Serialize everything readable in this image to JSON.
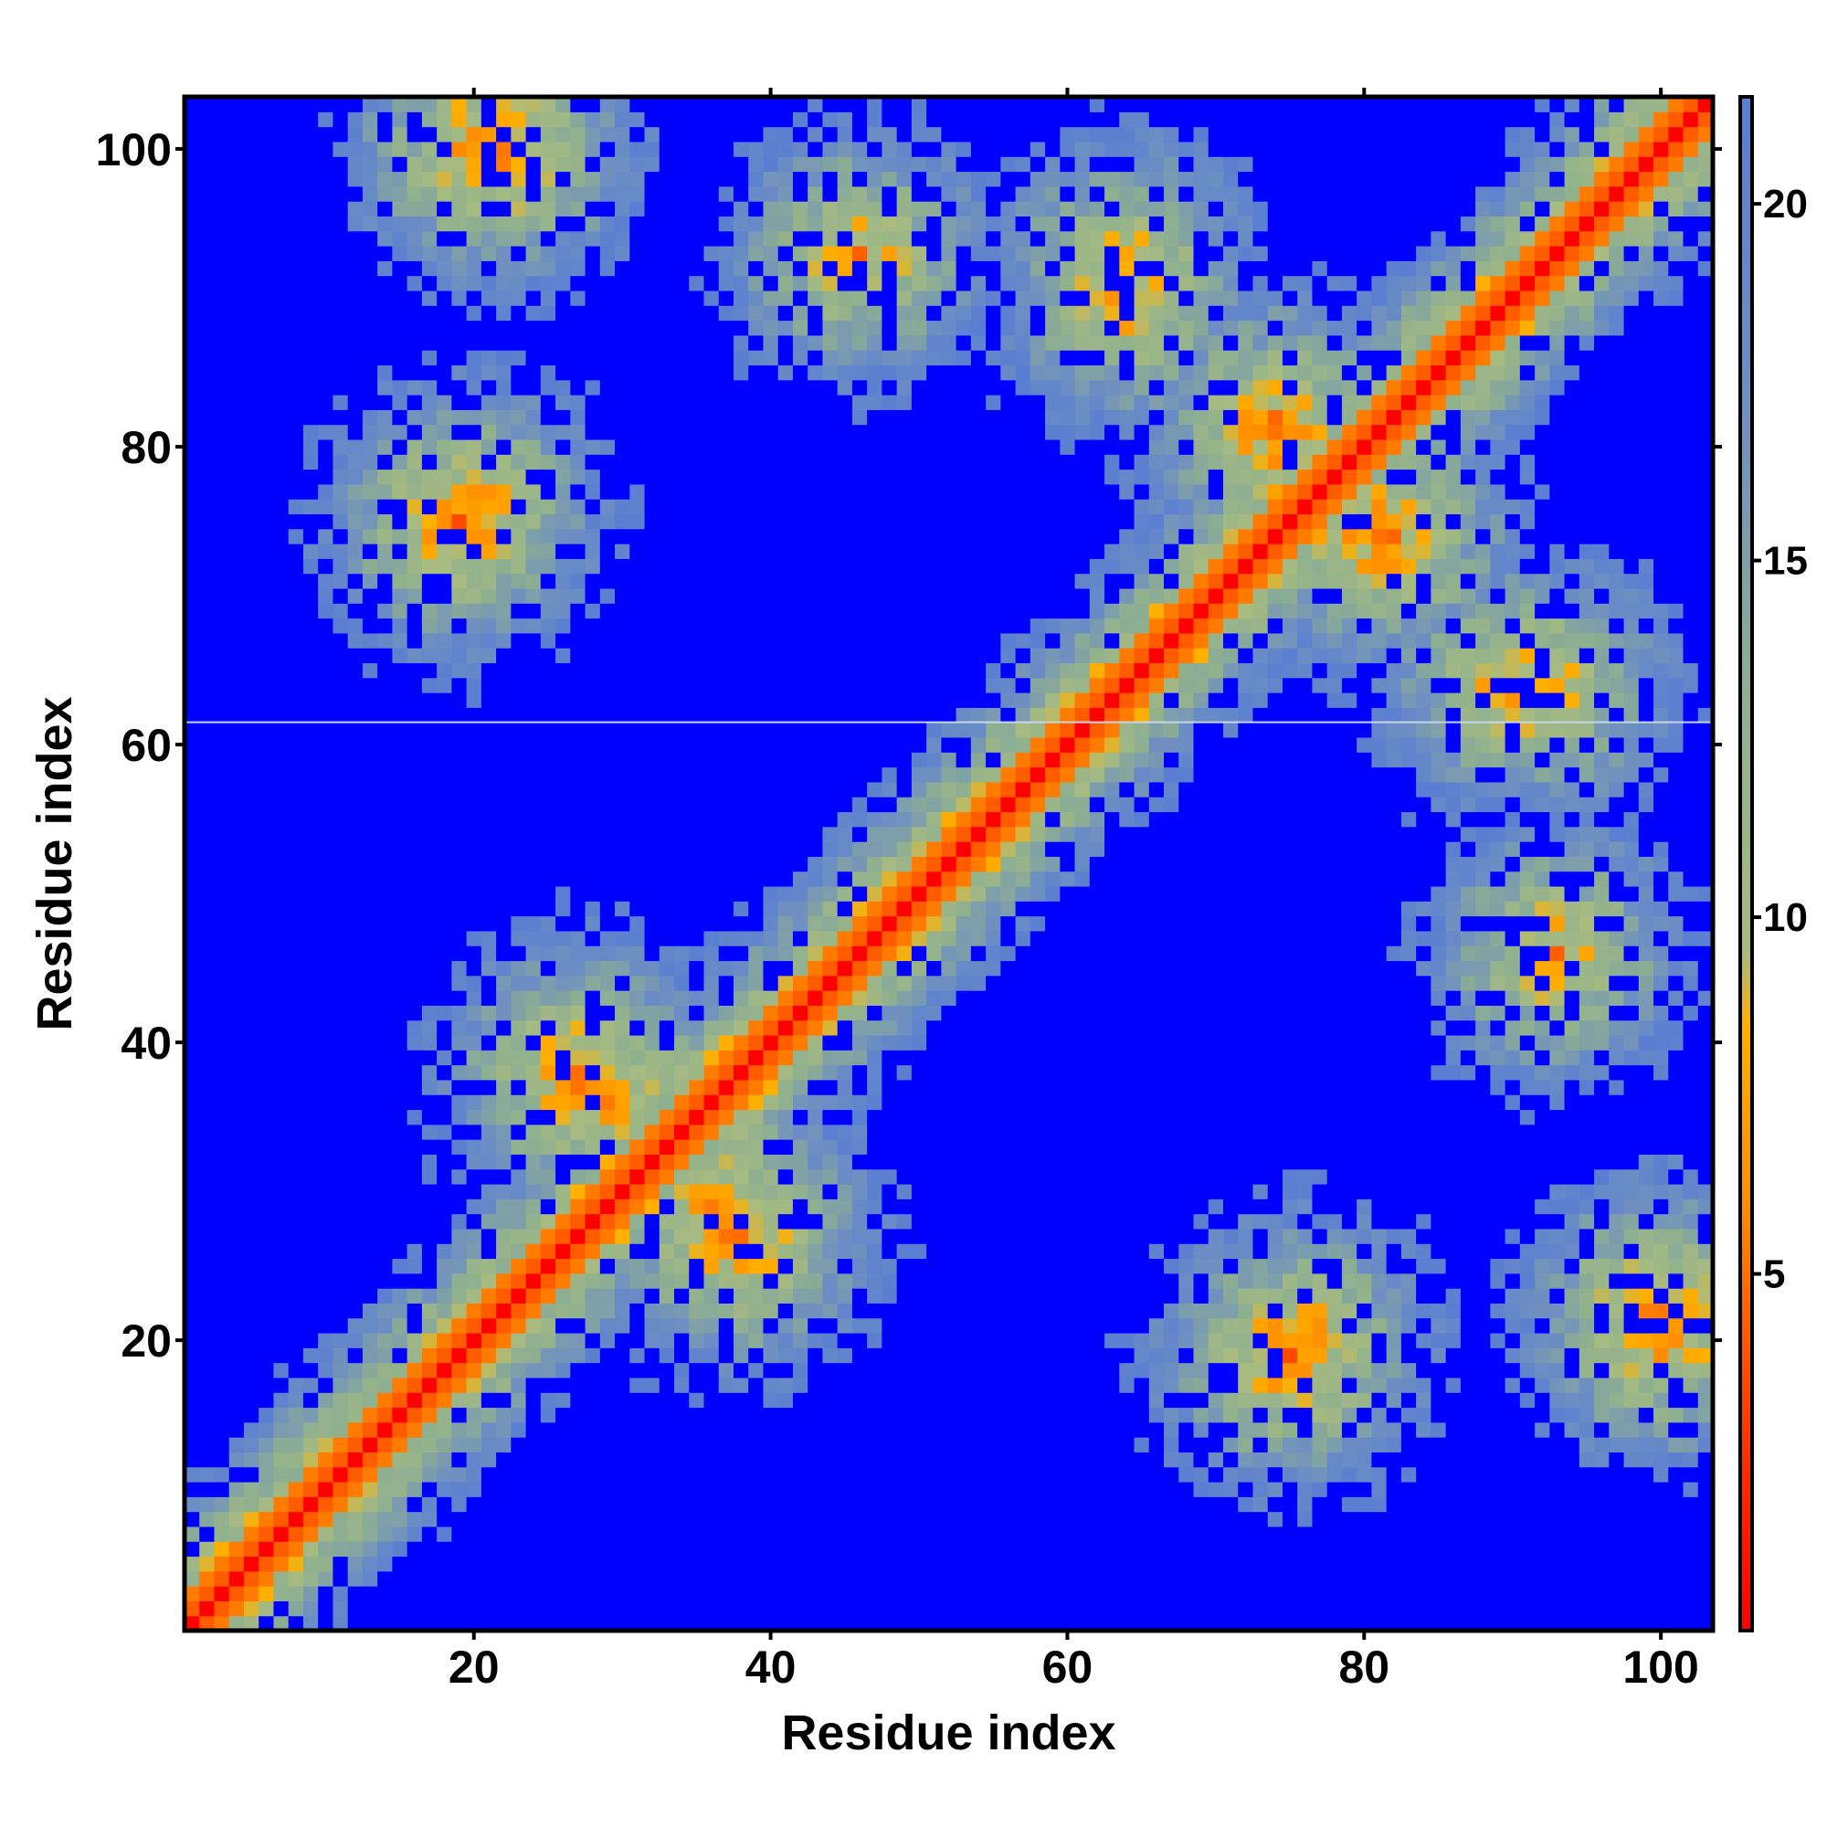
{
  "chart_data": {
    "type": "heatmap",
    "title": "",
    "xlabel": "Residue index",
    "ylabel": "Residue index",
    "xlim": [
      0.5,
      103.5
    ],
    "ylim": [
      0.5,
      103.5
    ],
    "n_residues": 103,
    "x_ticks": [
      20,
      40,
      60,
      80,
      100
    ],
    "y_ticks": [
      20,
      40,
      60,
      80,
      100
    ],
    "colorbar": {
      "range": [
        0,
        21.5
      ],
      "ticks": [
        5,
        10,
        15,
        20
      ],
      "stops": [
        {
          "value": 0,
          "color": "#ff0000"
        },
        {
          "value": 3,
          "color": "#ff3c00"
        },
        {
          "value": 6,
          "color": "#ff8c00"
        },
        {
          "value": 8.5,
          "color": "#ffb000"
        },
        {
          "value": 9.5,
          "color": "#a8bb80"
        },
        {
          "value": 13,
          "color": "#8fb08f"
        },
        {
          "value": 17,
          "color": "#6f90c0"
        },
        {
          "value": 21.5,
          "color": "#5a7ed2"
        }
      ],
      "saturation_color": "#0000ff"
    },
    "features": {
      "diagonal_band": "distance grows with |i - j|; red core along diagonal, orange flanks, green/grey halo",
      "contact_clusters": [
        {
          "i": 22,
          "j": 100,
          "min_distance": 6
        },
        {
          "i": 20,
          "j": 76,
          "min_distance": 7
        },
        {
          "i": 27,
          "j": 38,
          "min_distance": 6
        },
        {
          "i": 37,
          "j": 28,
          "min_distance": 6
        },
        {
          "i": 75,
          "j": 19,
          "min_distance": 6
        },
        {
          "i": 100,
          "j": 21,
          "min_distance": 6
        },
        {
          "i": 76,
          "j": 77,
          "min_distance": 7
        },
        {
          "i": 81,
          "j": 74,
          "min_distance": 6
        },
        {
          "i": 90,
          "j": 64,
          "min_distance": 7
        },
        {
          "i": 46,
          "j": 93,
          "min_distance": 7
        },
        {
          "i": 64,
          "j": 92,
          "min_distance": 7
        }
      ],
      "gap_row": 61.5
    }
  }
}
